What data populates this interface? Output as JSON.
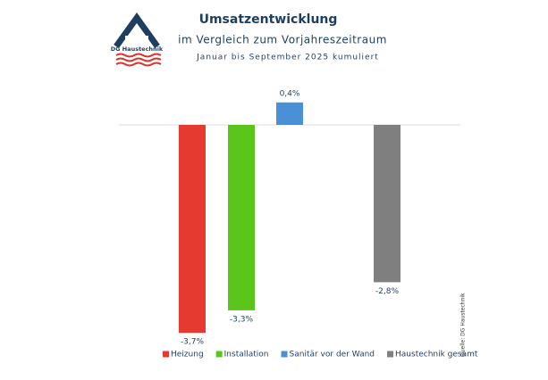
{
  "chart_data": {
    "type": "bar",
    "title": "Umsatzentwicklung",
    "subtitle": "im Vergleich zum Vorjahreszeitraum",
    "period": "Januar bis September 2025 kumuliert",
    "logo_text": "DG Haustechnik",
    "source": "Quelle: DG Haustechnik",
    "categories": [
      "Heizung",
      "Installation",
      "Sanitär vor der Wand",
      "Haustechnik gesamt"
    ],
    "values": [
      -3.7,
      -3.3,
      0.4,
      -2.8
    ],
    "value_labels": [
      "-3,7%",
      "-3,3%",
      "0,4%",
      "-2,8%"
    ],
    "colors": [
      "#e53a2f",
      "#5cc51c",
      "#4a90d6",
      "#7f7f7f"
    ],
    "ylim": [
      -4,
      0.5
    ],
    "legend": "bottom"
  }
}
